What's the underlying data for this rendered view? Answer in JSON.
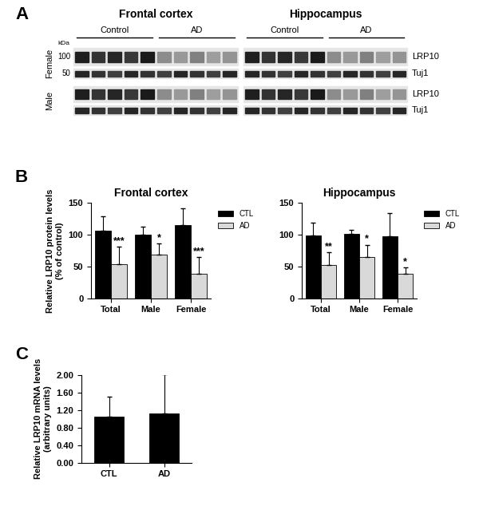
{
  "panel_labels": [
    "A",
    "B",
    "C"
  ],
  "blot": {
    "regions": [
      "Frontal cortex",
      "Hippocampus"
    ],
    "groups": [
      "Control",
      "AD"
    ],
    "kda_label": "kDa",
    "markers": [
      "100",
      "50"
    ],
    "rows": [
      {
        "label": "Female",
        "bands": [
          "LRP10",
          "Tuj1"
        ]
      },
      {
        "label": "Male",
        "bands": [
          "LRP10",
          "Tuj1"
        ]
      }
    ]
  },
  "chart_data": [
    {
      "type": "bar",
      "title": "Frontal cortex",
      "y_label": "Relative LRP10 protein levels\n(% of control)",
      "categories": [
        "Total",
        "Male",
        "Female"
      ],
      "series": [
        {
          "name": "CTL",
          "color": "#000000",
          "values": [
            107,
            100,
            115
          ],
          "errors": [
            22,
            13,
            27
          ]
        },
        {
          "name": "AD",
          "color": "#d9d9d9",
          "values": [
            53,
            69,
            38
          ],
          "errors": [
            28,
            17,
            27
          ],
          "significance": [
            "***",
            "*",
            "***"
          ]
        }
      ],
      "ylim": [
        0,
        150
      ],
      "yticks": [
        0,
        50,
        100,
        150
      ],
      "legend": "upper left"
    },
    {
      "type": "bar",
      "title": "Hippocampus",
      "categories": [
        "Total",
        "Male",
        "Female"
      ],
      "series": [
        {
          "name": "CTL",
          "color": "#000000",
          "values": [
            99,
            101,
            97
          ],
          "errors": [
            20,
            7,
            37
          ]
        },
        {
          "name": "AD",
          "color": "#d9d9d9",
          "values": [
            52,
            65,
            39
          ],
          "errors": [
            20,
            19,
            9
          ],
          "significance": [
            "**",
            "*",
            "*"
          ]
        }
      ],
      "ylim": [
        0,
        150
      ],
      "yticks": [
        0,
        50,
        100,
        150
      ],
      "legend": "upper left"
    },
    {
      "type": "bar",
      "y_label": "Relative LRP10 mRNA levels\n(arbitrary units)",
      "categories": [
        "CTL",
        "AD"
      ],
      "values": [
        1.05,
        1.12
      ],
      "errors": [
        0.45,
        0.9
      ],
      "color": "#000000",
      "ylim": [
        0,
        2.0
      ],
      "yticks": [
        {
          "value": 0,
          "label": "0.00"
        },
        {
          "value": 0.4,
          "label": "0.40"
        },
        {
          "value": 0.8,
          "label": "0.80"
        },
        {
          "value": 1.2,
          "label": "1.20"
        },
        {
          "value": 1.6,
          "label": "1.60"
        },
        {
          "value": 2.0,
          "label": "2.00"
        }
      ]
    }
  ]
}
